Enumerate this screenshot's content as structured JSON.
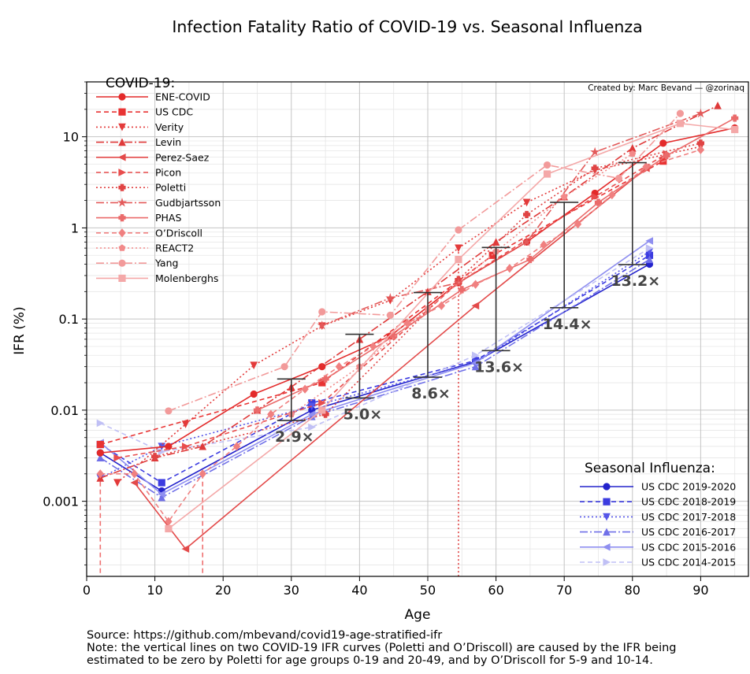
{
  "chart_data": {
    "type": "line",
    "title": "Infection Fatality Ratio of COVID-19 vs. Seasonal Influenza",
    "credit": "Created by: Marc Bevand — @zorinaq",
    "xlabel": "Age",
    "ylabel": "IFR (%)",
    "xlim": [
      0,
      97
    ],
    "ylim": [
      0.00015,
      40
    ],
    "yscale": "log",
    "x_ticks": [
      0,
      10,
      20,
      30,
      40,
      50,
      60,
      70,
      80,
      90
    ],
    "y_ticks": [
      {
        "value": 0.001,
        "label": "0.001"
      },
      {
        "value": 0.01,
        "label": "0.01"
      },
      {
        "value": 0.1,
        "label": "0.1"
      },
      {
        "value": 1,
        "label": "1"
      },
      {
        "value": 10,
        "label": "10"
      }
    ],
    "grid": true,
    "legend_covid_title": "COVID-19:",
    "legend_flu_title": "Seasonal Influenza:",
    "covid_series": [
      {
        "name": "ENE-COVID",
        "color": "#e32a2a",
        "dash": "",
        "marker": "circle",
        "points": [
          [
            2,
            0.0034
          ],
          [
            12,
            0.004
          ],
          [
            24.5,
            0.015
          ],
          [
            34.5,
            0.03
          ],
          [
            44.5,
            0.065
          ],
          [
            54.5,
            0.25
          ],
          [
            64.5,
            0.7
          ],
          [
            74.5,
            2.4
          ],
          [
            84.5,
            8.5
          ],
          [
            95,
            12.5
          ]
        ]
      },
      {
        "name": "US CDC",
        "color": "#e83333",
        "dash": "6,4",
        "marker": "square",
        "points": [
          [
            2,
            0.0042
          ],
          [
            34.5,
            0.02
          ],
          [
            59.5,
            0.5
          ],
          [
            84.5,
            5.4
          ]
        ]
      },
      {
        "name": "Verity",
        "color": "#e33a3a",
        "dash": "2,3",
        "marker": "tri-down",
        "points": [
          [
            4.5,
            0.0016
          ],
          [
            14.5,
            0.007
          ],
          [
            24.5,
            0.031
          ],
          [
            34.5,
            0.084
          ],
          [
            44.5,
            0.16
          ],
          [
            54.5,
            0.6
          ],
          [
            64.5,
            1.9
          ],
          [
            74.5,
            4.3
          ],
          [
            90,
            7.8
          ]
        ]
      },
      {
        "name": "Levin",
        "color": "#df3a3a",
        "dash": "10,3,2,3",
        "marker": "tri-up",
        "points": [
          [
            2,
            0.0018
          ],
          [
            10,
            0.003
          ],
          [
            17,
            0.004
          ],
          [
            25,
            0.01
          ],
          [
            30,
            0.018
          ],
          [
            40,
            0.06
          ],
          [
            50,
            0.2
          ],
          [
            60,
            0.7
          ],
          [
            70,
            2.2
          ],
          [
            80,
            7.5
          ],
          [
            92.5,
            22
          ]
        ]
      },
      {
        "name": "Perez-Saez",
        "color": "#e34a4a",
        "dash": "",
        "marker": "tri-left",
        "points": [
          [
            7,
            0.0016
          ],
          [
            14.5,
            0.0003
          ],
          [
            57,
            0.14
          ],
          [
            82,
            4.5
          ]
        ]
      },
      {
        "name": "Picon",
        "color": "#e84d4d",
        "dash": "6,4",
        "marker": "tri-right",
        "points": [
          [
            4.5,
            0.003
          ],
          [
            14.5,
            0.004
          ],
          [
            34.5,
            0.012
          ],
          [
            54.5,
            0.25
          ],
          [
            74.5,
            2.2
          ],
          [
            85,
            6.5
          ]
        ]
      },
      {
        "name": "Poletti",
        "color": "#e04444",
        "dash": "2,3",
        "marker": "plus",
        "points": [
          [
            10,
            0.0031
          ],
          [
            35,
            0.009
          ],
          [
            54.5,
            0.27
          ],
          [
            64.5,
            1.4
          ],
          [
            74.5,
            4.5
          ],
          [
            90,
            8.5
          ]
        ]
      },
      {
        "name": "Gudbjartsson",
        "color": "#e35a5a",
        "dash": "10,3,2,3",
        "marker": "star",
        "points": [
          [
            34.5,
            0.085
          ],
          [
            44.5,
            0.17
          ],
          [
            54.5,
            0.25
          ],
          [
            64.5,
            0.7
          ],
          [
            74.5,
            6.8
          ],
          [
            90,
            18
          ]
        ]
      },
      {
        "name": "PHAS",
        "color": "#ea6b6b",
        "dash": "",
        "marker": "plus",
        "points": [
          [
            25,
            0.01
          ],
          [
            35,
            0.022
          ],
          [
            45,
            0.065
          ],
          [
            55,
            0.21
          ],
          [
            65,
            0.45
          ],
          [
            75,
            1.9
          ],
          [
            85,
            6.2
          ],
          [
            95,
            16
          ]
        ]
      },
      {
        "name": "O’Driscoll",
        "color": "#f08080",
        "dash": "6,4",
        "marker": "diamond",
        "points": [
          [
            2,
            0.002
          ],
          [
            7,
            0.002
          ],
          [
            12,
            0.0006
          ],
          [
            17,
            0.002
          ],
          [
            22,
            0.004
          ],
          [
            27,
            0.009
          ],
          [
            32,
            0.017
          ],
          [
            37,
            0.03
          ],
          [
            42,
            0.05
          ],
          [
            47,
            0.09
          ],
          [
            52,
            0.14
          ],
          [
            57,
            0.24
          ],
          [
            62,
            0.36
          ],
          [
            67,
            0.65
          ],
          [
            72,
            1.1
          ],
          [
            77,
            2.3
          ],
          [
            82,
            4.7
          ],
          [
            90,
            7.2
          ]
        ]
      },
      {
        "name": "REACT2",
        "color": "#f28a8a",
        "dash": "2,3",
        "marker": "pentagon",
        "points": [
          [
            30,
            0.009
          ],
          [
            40,
            0.03
          ],
          [
            50,
            0.13
          ],
          [
            60,
            0.55
          ],
          [
            70,
            2.2
          ],
          [
            80,
            6.5
          ]
        ]
      },
      {
        "name": "Yang",
        "color": "#f29a9a",
        "dash": "10,3,2,3",
        "marker": "circle",
        "points": [
          [
            12,
            0.0098
          ],
          [
            29,
            0.03
          ],
          [
            34.5,
            0.12
          ],
          [
            44.5,
            0.11
          ],
          [
            54.5,
            0.95
          ],
          [
            67.5,
            4.9
          ],
          [
            78,
            3.5
          ],
          [
            87,
            18
          ]
        ]
      },
      {
        "name": "Molenberghs",
        "color": "#f4a8a8",
        "dash": "",
        "marker": "square",
        "points": [
          [
            12,
            0.0005
          ],
          [
            34.5,
            0.01
          ],
          [
            54.5,
            0.45
          ],
          [
            67.5,
            3.9
          ],
          [
            87,
            14
          ],
          [
            95,
            12
          ]
        ]
      }
    ],
    "flu_series": [
      {
        "name": "US CDC 2019-2020",
        "color": "#2323cc",
        "dash": "",
        "marker": "circle",
        "points": [
          [
            2,
            0.0034
          ],
          [
            11,
            0.0013
          ],
          [
            33,
            0.01
          ],
          [
            57,
            0.034
          ],
          [
            82.5,
            0.4
          ]
        ]
      },
      {
        "name": "US CDC 2018-2019",
        "color": "#3c3ce0",
        "dash": "6,4",
        "marker": "square",
        "points": [
          [
            2,
            0.0042
          ],
          [
            11,
            0.0016
          ],
          [
            33,
            0.012
          ],
          [
            57,
            0.035
          ],
          [
            82.5,
            0.5
          ]
        ]
      },
      {
        "name": "US CDC 2017-2018",
        "color": "#5555e8",
        "dash": "2,3",
        "marker": "tri-down",
        "points": [
          [
            2,
            0.0018
          ],
          [
            11,
            0.004
          ],
          [
            33,
            0.011
          ],
          [
            57,
            0.033
          ],
          [
            82.5,
            0.55
          ]
        ]
      },
      {
        "name": "US CDC 2016-2017",
        "color": "#7070e8",
        "dash": "10,3,2,3",
        "marker": "tri-up",
        "points": [
          [
            2,
            0.003
          ],
          [
            11,
            0.0011
          ],
          [
            33,
            0.0085
          ],
          [
            57,
            0.03
          ],
          [
            82.5,
            0.45
          ]
        ]
      },
      {
        "name": "US CDC 2015-2016",
        "color": "#8f8ff0",
        "dash": "",
        "marker": "tri-left",
        "points": [
          [
            2,
            0.0044
          ],
          [
            11,
            0.0012
          ],
          [
            33,
            0.009
          ],
          [
            57,
            0.033
          ],
          [
            82.5,
            0.72
          ]
        ]
      },
      {
        "name": "US CDC 2014-2015",
        "color": "#c0c0f5",
        "dash": "6,4",
        "marker": "tri-right",
        "points": [
          [
            2,
            0.0072
          ],
          [
            11,
            0.0035
          ],
          [
            33,
            0.0065
          ],
          [
            57,
            0.04
          ],
          [
            82.5,
            0.6
          ]
        ]
      }
    ],
    "vertical_lines": [
      {
        "x": 2,
        "from": 0.00015,
        "to": 0.002,
        "color": "#ef7070",
        "dash": "6,4"
      },
      {
        "x": 17,
        "from": 0.00015,
        "to": 0.002,
        "color": "#ef7070",
        "dash": "6,4"
      },
      {
        "x": 54.5,
        "from": 0.00015,
        "to": 0.6,
        "color": "#e04444",
        "dash": "2,3"
      }
    ],
    "ratio_bars": [
      {
        "x": 30,
        "low": 0.0077,
        "high": 0.022,
        "label": "2.9×"
      },
      {
        "x": 40,
        "low": 0.0136,
        "high": 0.068,
        "label": "5.0×"
      },
      {
        "x": 50,
        "low": 0.023,
        "high": 0.195,
        "label": "8.6×"
      },
      {
        "x": 60,
        "low": 0.045,
        "high": 0.61,
        "label": "13.6×"
      },
      {
        "x": 70,
        "low": 0.133,
        "high": 1.91,
        "label": "14.4×"
      },
      {
        "x": 80,
        "low": 0.395,
        "high": 5.2,
        "label": "13.2×"
      }
    ]
  },
  "footer": {
    "source": "Source: https://github.com/mbevand/covid19-age-stratified-ifr",
    "note_line1": "Note: the vertical lines on two COVID-19 IFR curves (Poletti and O’Driscoll) are caused by the IFR being",
    "note_line2": "estimated to be zero by Poletti for age groups 0-19 and 20-49, and by O’Driscoll for 5-9 and 10-14."
  }
}
